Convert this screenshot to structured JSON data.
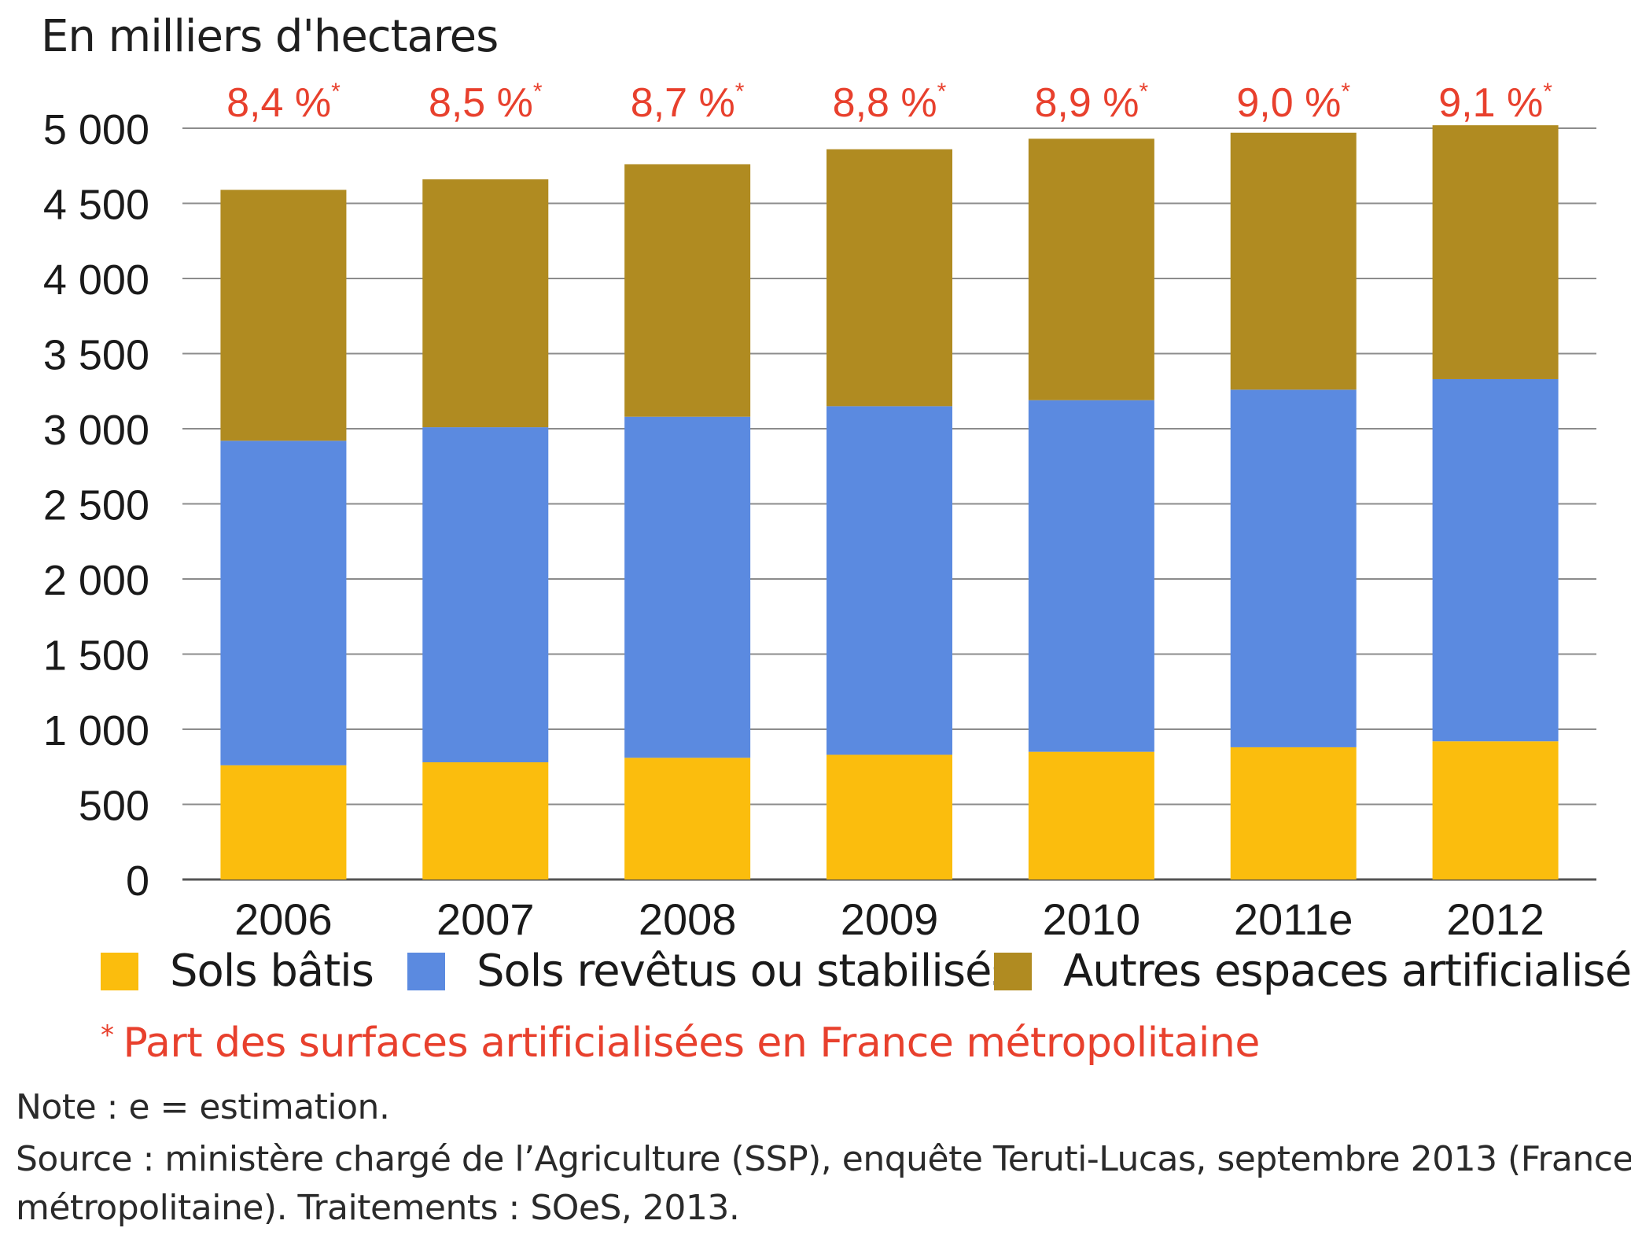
{
  "header": {
    "unit_label": "En milliers d'hectares"
  },
  "chart_data": {
    "type": "bar",
    "stacked": true,
    "ylabel": "En milliers d'hectares",
    "ylim": [
      0,
      5000
    ],
    "yticks": [
      0,
      500,
      1000,
      1500,
      2000,
      2500,
      3000,
      3500,
      4000,
      4500,
      5000
    ],
    "ytick_labels": [
      "0",
      "500",
      "1 000",
      "1 500",
      "2 000",
      "2 500",
      "3 000",
      "3 500",
      "4 000",
      "4 500",
      "5 000"
    ],
    "grid": true,
    "categories": [
      "2006",
      "2007",
      "2008",
      "2009",
      "2010",
      "2011e",
      "2012"
    ],
    "series": [
      {
        "name": "Sols bâtis",
        "color": "#fbbd0d",
        "values": [
          760,
          780,
          810,
          830,
          850,
          880,
          920
        ]
      },
      {
        "name": "Sols revêtus ou stabilisés",
        "color": "#5b8ae0",
        "values": [
          2160,
          2230,
          2270,
          2320,
          2340,
          2380,
          2410
        ]
      },
      {
        "name": "Autres espaces artificialisés",
        "color": "#b08b21",
        "values": [
          1670,
          1650,
          1680,
          1710,
          1740,
          1710,
          1690
        ]
      }
    ],
    "top_labels": [
      "8,4 %",
      "8,5 %",
      "8,7 %",
      "8,8 %",
      "8,9 %",
      "9,0 %",
      "9,1 %"
    ],
    "top_label_marker": "*",
    "top_label_color": "#e8402d",
    "legend_position": "bottom"
  },
  "notes": {
    "share_marker": "*",
    "share_text": "Part des surfaces artificialisées en France métropolitaine",
    "estimate_note": "Note : e = estimation.",
    "source_line1": "Source : ministère chargé de l’Agriculture (SSP), enquête Teruti-Lucas, septembre 2013 (France",
    "source_line2": "métropolitaine). Traitements : SOeS, 2013."
  }
}
